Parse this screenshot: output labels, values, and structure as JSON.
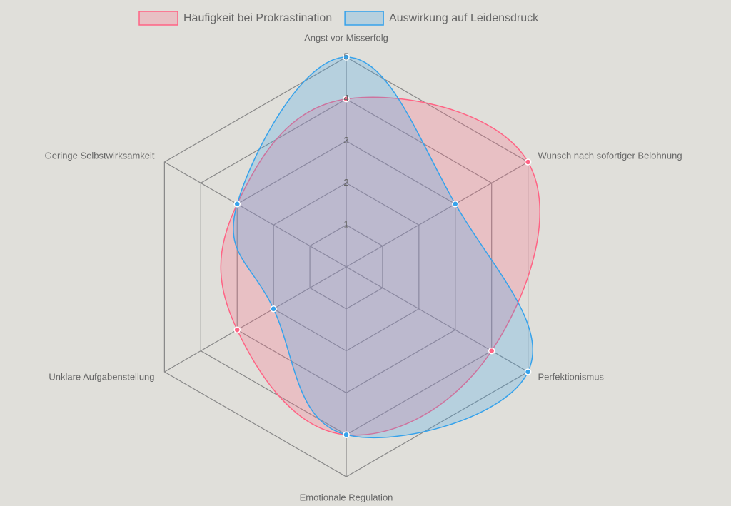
{
  "chart_data": {
    "type": "radar",
    "categories": [
      "Angst vor Misserfolg",
      "Wunsch nach sofortiger Belohnung",
      "Perfektionismus",
      "Emotionale Regulation",
      "Unklare Aufgabenstellung",
      "Geringe Selbstwirksamkeit"
    ],
    "series": [
      {
        "name": "Häufigkeit bei Prokrastination",
        "color": "#ff6384",
        "values": [
          4,
          5,
          4,
          4,
          3,
          3
        ]
      },
      {
        "name": "Auswirkung auf Leidensdruck",
        "color": "#36a2eb",
        "values": [
          5,
          3,
          5,
          4,
          2,
          3
        ]
      }
    ],
    "ylim": [
      0,
      5
    ],
    "yticks": [
      1,
      2,
      3,
      4,
      5
    ]
  }
}
